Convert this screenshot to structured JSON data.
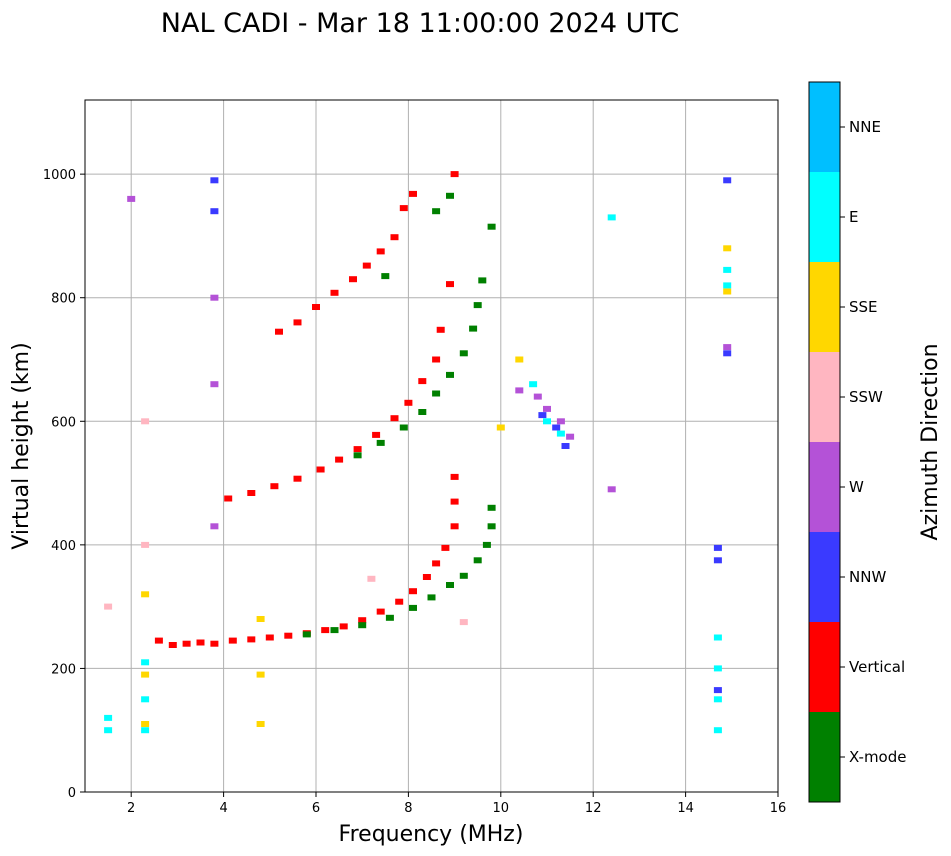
{
  "chart_data": {
    "type": "scatter",
    "title": "NAL CADI - Mar 18 11:00:00 2024 UTC",
    "xlabel": "Frequency (MHz)",
    "ylabel": "Virtual height (km)",
    "xlim": [
      1,
      16
    ],
    "ylim": [
      0,
      1120
    ],
    "xticks": [
      2,
      4,
      6,
      8,
      10,
      12,
      14,
      16
    ],
    "yticks": [
      0,
      200,
      400,
      600,
      800,
      1000
    ],
    "grid": true,
    "colorbar": {
      "label": "Azimuth Direction",
      "categories": [
        {
          "name": "X-mode",
          "color": "#008000"
        },
        {
          "name": "Vertical",
          "color": "#ff0000"
        },
        {
          "name": "NNW",
          "color": "#3a3aff"
        },
        {
          "name": "W",
          "color": "#b452d7"
        },
        {
          "name": "SSW",
          "color": "#ffb6c1"
        },
        {
          "name": "SSE",
          "color": "#ffd700"
        },
        {
          "name": "E",
          "color": "#00ffff"
        },
        {
          "name": "NNE",
          "color": "#00bfff"
        }
      ]
    },
    "series": [
      {
        "name": "Vertical",
        "color": "#ff0000",
        "points": [
          [
            2.6,
            245
          ],
          [
            2.9,
            238
          ],
          [
            3.2,
            240
          ],
          [
            3.5,
            242
          ],
          [
            3.8,
            240
          ],
          [
            4.2,
            245
          ],
          [
            4.6,
            247
          ],
          [
            5.0,
            250
          ],
          [
            5.4,
            253
          ],
          [
            5.8,
            257
          ],
          [
            6.2,
            262
          ],
          [
            6.6,
            268
          ],
          [
            7.0,
            278
          ],
          [
            7.4,
            292
          ],
          [
            7.8,
            308
          ],
          [
            8.1,
            325
          ],
          [
            8.4,
            348
          ],
          [
            8.6,
            370
          ],
          [
            8.8,
            395
          ],
          [
            9.0,
            430
          ],
          [
            9.0,
            470
          ],
          [
            9.0,
            510
          ]
        ]
      },
      {
        "name": "X-mode",
        "color": "#008000",
        "points": [
          [
            5.8,
            255
          ],
          [
            6.4,
            262
          ],
          [
            7.0,
            270
          ],
          [
            7.6,
            282
          ],
          [
            8.1,
            298
          ],
          [
            8.5,
            315
          ],
          [
            8.9,
            335
          ],
          [
            9.2,
            350
          ],
          [
            9.5,
            375
          ],
          [
            9.7,
            400
          ],
          [
            9.8,
            430
          ],
          [
            9.8,
            460
          ]
        ]
      },
      {
        "name": "Vertical",
        "color": "#ff0000",
        "points": [
          [
            4.1,
            475
          ],
          [
            4.6,
            484
          ],
          [
            5.1,
            495
          ],
          [
            5.6,
            507
          ],
          [
            6.1,
            522
          ],
          [
            6.5,
            538
          ],
          [
            6.9,
            555
          ],
          [
            7.3,
            578
          ],
          [
            7.7,
            605
          ],
          [
            8.0,
            630
          ],
          [
            8.3,
            665
          ],
          [
            8.6,
            700
          ],
          [
            8.7,
            748
          ]
        ]
      },
      {
        "name": "X-mode",
        "color": "#008000",
        "points": [
          [
            6.9,
            545
          ],
          [
            7.4,
            565
          ],
          [
            7.9,
            590
          ],
          [
            8.3,
            615
          ],
          [
            8.6,
            645
          ],
          [
            8.9,
            675
          ],
          [
            9.2,
            710
          ],
          [
            9.4,
            750
          ],
          [
            9.5,
            788
          ],
          [
            9.6,
            828
          ],
          [
            9.8,
            915
          ]
        ]
      },
      {
        "name": "Vertical",
        "color": "#ff0000",
        "points": [
          [
            5.2,
            745
          ],
          [
            5.6,
            760
          ],
          [
            6.0,
            785
          ],
          [
            6.4,
            808
          ],
          [
            6.8,
            830
          ],
          [
            7.1,
            852
          ],
          [
            7.4,
            875
          ],
          [
            7.7,
            898
          ],
          [
            7.9,
            945
          ],
          [
            8.1,
            968
          ],
          [
            8.9,
            822
          ],
          [
            9.0,
            1000
          ]
        ]
      },
      {
        "name": "X-mode",
        "color": "#008000",
        "points": [
          [
            8.6,
            940
          ],
          [
            8.9,
            965
          ],
          [
            7.5,
            835
          ]
        ]
      },
      {
        "name": "W",
        "color": "#b452d7",
        "points": [
          [
            10.4,
            650
          ],
          [
            10.8,
            640
          ],
          [
            11.0,
            620
          ],
          [
            11.3,
            600
          ],
          [
            11.5,
            575
          ],
          [
            12.4,
            490
          ],
          [
            2.0,
            960
          ],
          [
            3.8,
            800
          ],
          [
            3.8,
            660
          ],
          [
            3.8,
            430
          ],
          [
            14.9,
            720
          ]
        ]
      },
      {
        "name": "NNW",
        "color": "#3a3aff",
        "points": [
          [
            10.9,
            610
          ],
          [
            11.2,
            590
          ],
          [
            11.4,
            560
          ],
          [
            3.8,
            990
          ],
          [
            3.8,
            940
          ],
          [
            14.7,
            395
          ],
          [
            14.7,
            375
          ],
          [
            14.7,
            165
          ],
          [
            14.9,
            710
          ],
          [
            14.9,
            990
          ]
        ]
      },
      {
        "name": "SSE",
        "color": "#ffd700",
        "points": [
          [
            10.0,
            590
          ],
          [
            10.4,
            700
          ],
          [
            2.3,
            320
          ],
          [
            2.3,
            190
          ],
          [
            2.3,
            110
          ],
          [
            4.8,
            110
          ],
          [
            4.8,
            190
          ],
          [
            4.8,
            280
          ],
          [
            14.9,
            810
          ],
          [
            14.9,
            880
          ]
        ]
      },
      {
        "name": "E",
        "color": "#00ffff",
        "points": [
          [
            10.7,
            660
          ],
          [
            11.0,
            600
          ],
          [
            11.3,
            580
          ],
          [
            2.3,
            210
          ],
          [
            2.3,
            150
          ],
          [
            2.3,
            100
          ],
          [
            1.5,
            120
          ],
          [
            1.5,
            100
          ],
          [
            14.7,
            250
          ],
          [
            14.7,
            200
          ],
          [
            14.7,
            150
          ],
          [
            14.7,
            100
          ],
          [
            14.9,
            845
          ],
          [
            14.9,
            820
          ],
          [
            12.4,
            930
          ]
        ]
      },
      {
        "name": "SSW",
        "color": "#ffb6c1",
        "points": [
          [
            1.5,
            300
          ],
          [
            2.3,
            600
          ],
          [
            2.3,
            400
          ],
          [
            7.2,
            345
          ],
          [
            9.2,
            275
          ]
        ]
      }
    ]
  }
}
